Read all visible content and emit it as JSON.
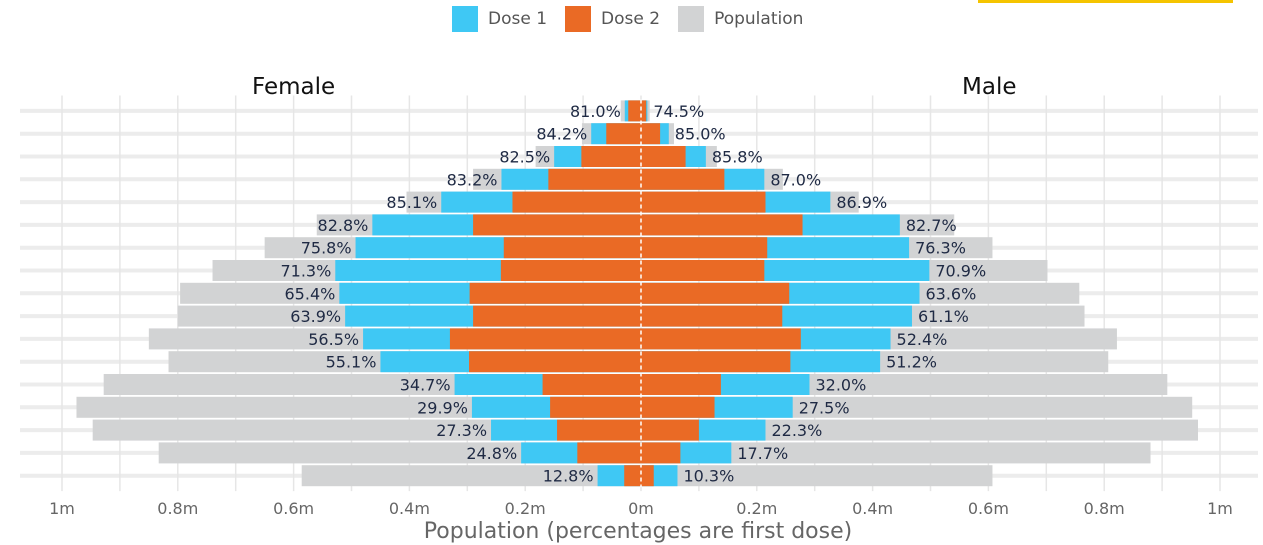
{
  "legend": [
    {
      "label": "Dose 1",
      "color": "#3fc8f4"
    },
    {
      "label": "Dose 2",
      "color": "#ea6a25"
    },
    {
      "label": "Population",
      "color": "#d2d3d4"
    }
  ],
  "chart_data": {
    "type": "bar",
    "orientation": "horizontal-population-pyramid",
    "xlabel": "Population (percentages are first dose)",
    "left_label": "Female",
    "right_label": "Male",
    "xlim": [
      -1000000,
      1000000
    ],
    "ticks": [
      {
        "value": -1000000,
        "label": "1m"
      },
      {
        "value": -800000,
        "label": "0.8m"
      },
      {
        "value": -600000,
        "label": "0.6m"
      },
      {
        "value": -400000,
        "label": "0.4m"
      },
      {
        "value": -200000,
        "label": "0.2m"
      },
      {
        "value": 0,
        "label": "0m"
      },
      {
        "value": 200000,
        "label": "0.2m"
      },
      {
        "value": 400000,
        "label": "0.4m"
      },
      {
        "value": 600000,
        "label": "0.6m"
      },
      {
        "value": 800000,
        "label": "0.8m"
      },
      {
        "value": 1000000,
        "label": "1m"
      }
    ],
    "rows": [
      {
        "female": {
          "population": 35000,
          "dose1": 28000,
          "dose2": 22000,
          "pct": "81.0%"
        },
        "male": {
          "population": 15000,
          "dose1": 11000,
          "dose2": 9000,
          "pct": "74.5%"
        }
      },
      {
        "female": {
          "population": 102000,
          "dose1": 86000,
          "dose2": 60000,
          "pct": "84.2%"
        },
        "male": {
          "population": 57000,
          "dose1": 48000,
          "dose2": 33000,
          "pct": "85.0%"
        }
      },
      {
        "female": {
          "population": 182000,
          "dose1": 150000,
          "dose2": 103000,
          "pct": "82.5%"
        },
        "male": {
          "population": 131000,
          "dose1": 112000,
          "dose2": 77000,
          "pct": "85.8%"
        }
      },
      {
        "female": {
          "population": 290000,
          "dose1": 241000,
          "dose2": 160000,
          "pct": "83.2%"
        },
        "male": {
          "population": 245000,
          "dose1": 213000,
          "dose2": 144000,
          "pct": "87.0%"
        }
      },
      {
        "female": {
          "population": 405000,
          "dose1": 345000,
          "dose2": 222000,
          "pct": "85.1%"
        },
        "male": {
          "population": 376000,
          "dose1": 327000,
          "dose2": 215000,
          "pct": "86.9%"
        }
      },
      {
        "female": {
          "population": 560000,
          "dose1": 464000,
          "dose2": 290000,
          "pct": "82.8%"
        },
        "male": {
          "population": 541000,
          "dose1": 447000,
          "dose2": 279000,
          "pct": "82.7%"
        }
      },
      {
        "female": {
          "population": 650000,
          "dose1": 493000,
          "dose2": 237000,
          "pct": "75.8%"
        },
        "male": {
          "population": 607000,
          "dose1": 463000,
          "dose2": 218000,
          "pct": "76.3%"
        }
      },
      {
        "female": {
          "population": 740000,
          "dose1": 528000,
          "dose2": 242000,
          "pct": "71.3%"
        },
        "male": {
          "population": 702000,
          "dose1": 498000,
          "dose2": 213000,
          "pct": "70.9%"
        }
      },
      {
        "female": {
          "population": 796000,
          "dose1": 521000,
          "dose2": 296000,
          "pct": "65.4%"
        },
        "male": {
          "population": 757000,
          "dose1": 481000,
          "dose2": 256000,
          "pct": "63.6%"
        }
      },
      {
        "female": {
          "population": 800000,
          "dose1": 511000,
          "dose2": 290000,
          "pct": "63.9%"
        },
        "male": {
          "population": 766000,
          "dose1": 468000,
          "dose2": 244000,
          "pct": "61.1%"
        }
      },
      {
        "female": {
          "population": 850000,
          "dose1": 480000,
          "dose2": 330000,
          "pct": "56.5%"
        },
        "male": {
          "population": 822000,
          "dose1": 431000,
          "dose2": 276000,
          "pct": "52.4%"
        }
      },
      {
        "female": {
          "population": 816000,
          "dose1": 450000,
          "dose2": 297000,
          "pct": "55.1%"
        },
        "male": {
          "population": 807000,
          "dose1": 413000,
          "dose2": 258000,
          "pct": "51.2%"
        }
      },
      {
        "female": {
          "population": 928000,
          "dose1": 322000,
          "dose2": 170000,
          "pct": "34.7%"
        },
        "male": {
          "population": 909000,
          "dose1": 291000,
          "dose2": 138000,
          "pct": "32.0%"
        }
      },
      {
        "female": {
          "population": 975000,
          "dose1": 292000,
          "dose2": 157000,
          "pct": "29.9%"
        },
        "male": {
          "population": 952000,
          "dose1": 262000,
          "dose2": 127000,
          "pct": "27.5%"
        }
      },
      {
        "female": {
          "population": 947000,
          "dose1": 259000,
          "dose2": 145000,
          "pct": "27.3%"
        },
        "male": {
          "population": 962000,
          "dose1": 215000,
          "dose2": 100000,
          "pct": "22.3%"
        }
      },
      {
        "female": {
          "population": 833000,
          "dose1": 207000,
          "dose2": 110000,
          "pct": "24.8%"
        },
        "male": {
          "population": 880000,
          "dose1": 156000,
          "dose2": 68000,
          "pct": "17.7%"
        }
      },
      {
        "female": {
          "population": 586000,
          "dose1": 75000,
          "dose2": 29000,
          "pct": "12.8%"
        },
        "male": {
          "population": 607000,
          "dose1": 63000,
          "dose2": 22000,
          "pct": "10.3%"
        }
      }
    ]
  }
}
